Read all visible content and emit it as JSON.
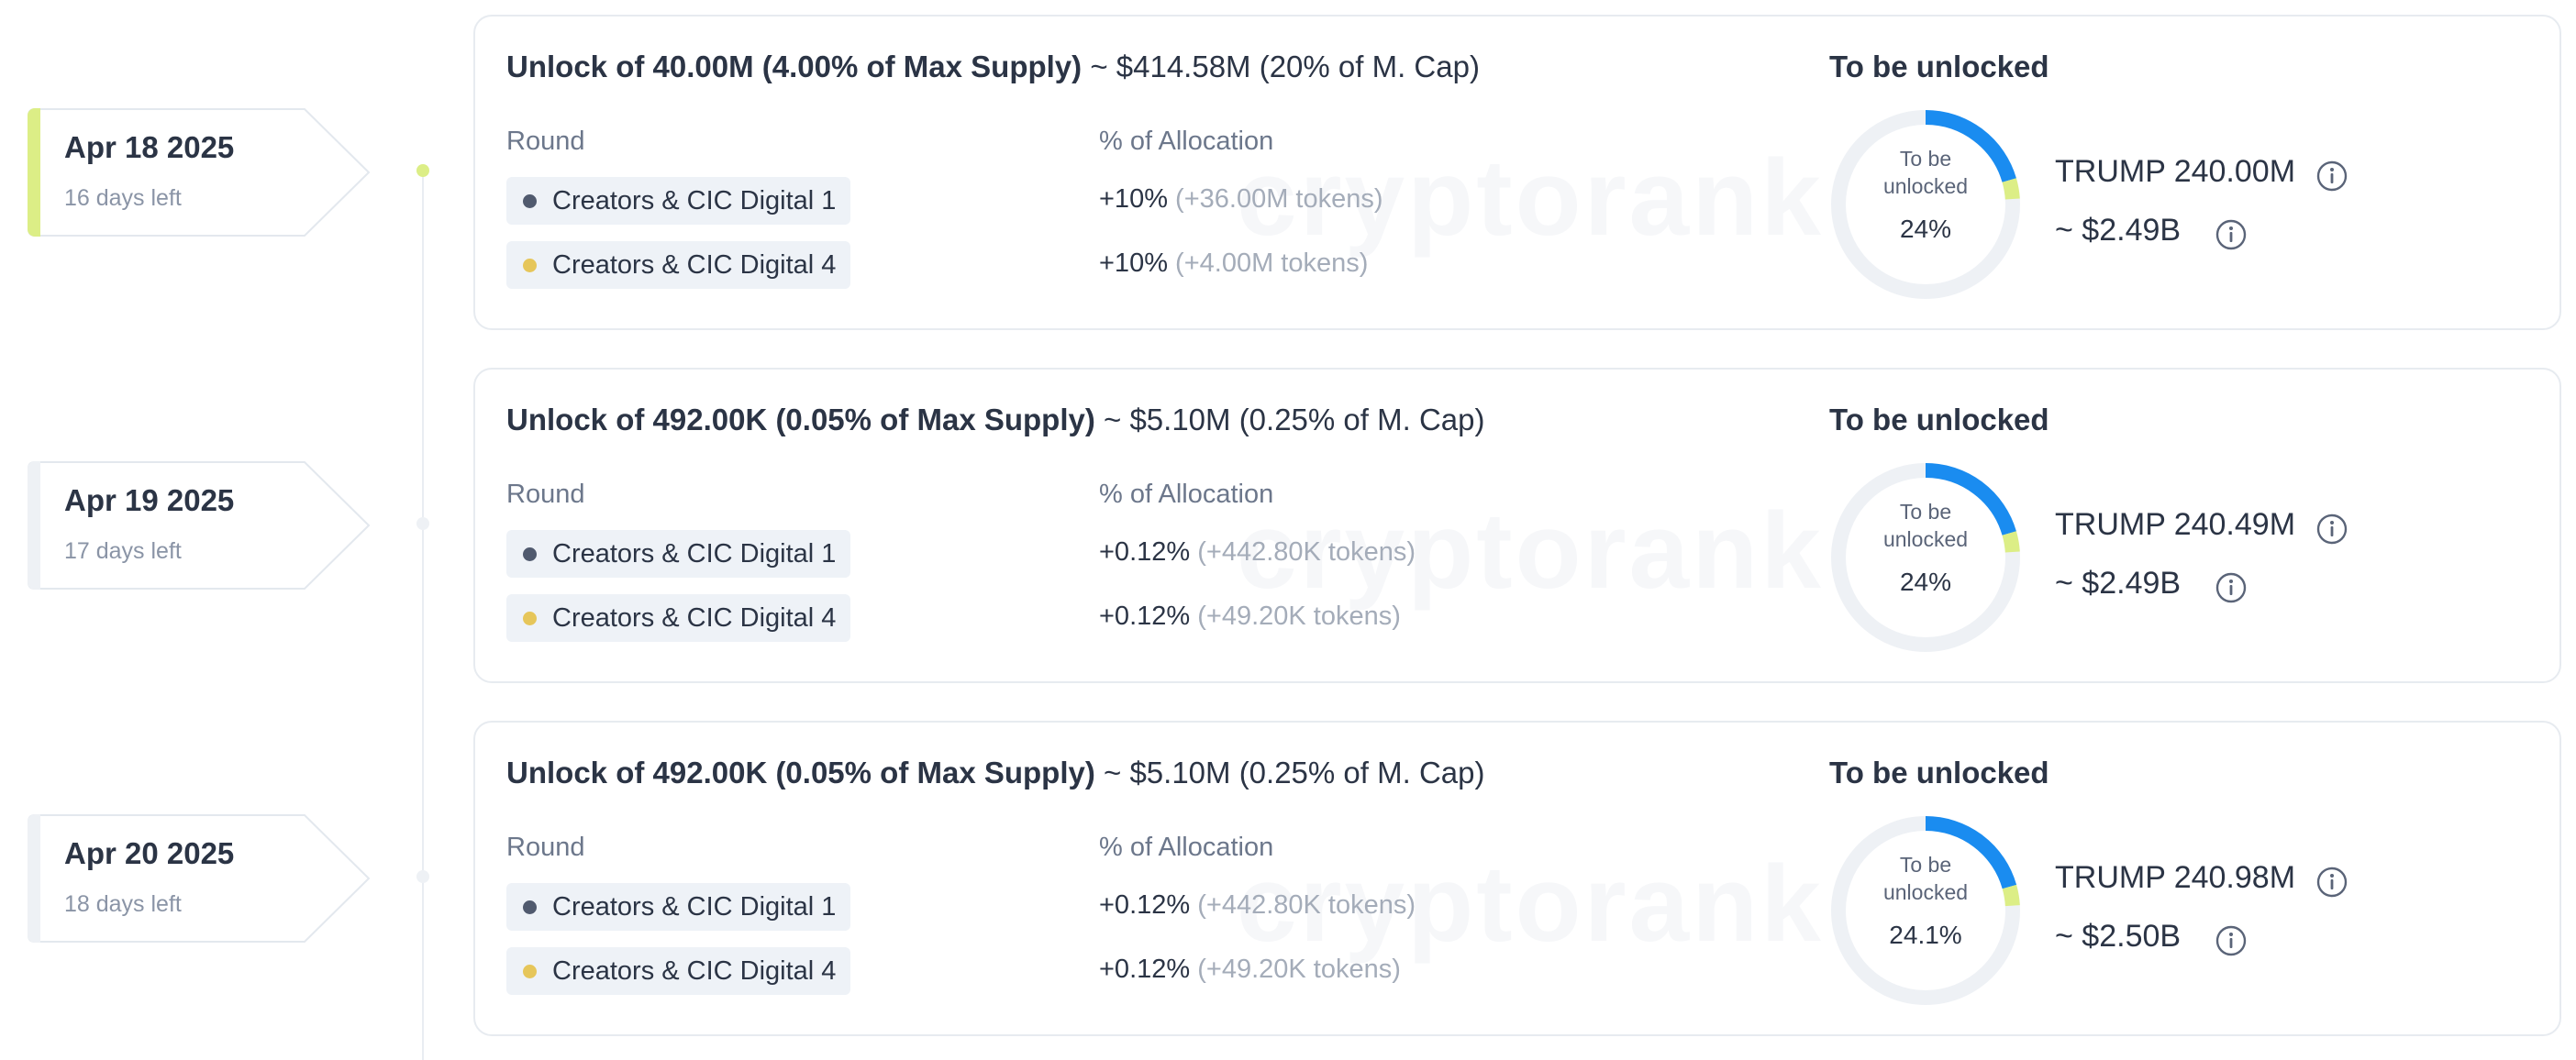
{
  "colors": {
    "accent_active": "#dcee86",
    "donut_blue": "#1a8cf0",
    "donut_green": "#dcee86",
    "donut_track": "#eef1f5",
    "dot_creators_1": "#505a6e",
    "dot_creators_4": "#e6c65a"
  },
  "watermark": "cryptorank",
  "labels": {
    "round": "Round",
    "allocation": "% of Allocation",
    "to_be_unlocked": "To be unlocked",
    "donut_caption": "To be unlocked"
  },
  "events": [
    {
      "date": "Apr 18 2025",
      "days_left": "16 days left",
      "active": true,
      "title_strong": "Unlock of 40.00M (4.00% of Max Supply)",
      "title_soft": "~ $414.58M (20% of M. Cap)",
      "rounds": [
        {
          "name": "Creators & CIC Digital 1",
          "dot": "dot_creators_1",
          "alloc": "+10%",
          "tokens": "(+36.00M tokens)"
        },
        {
          "name": "Creators & CIC Digital 4",
          "dot": "dot_creators_4",
          "alloc": "+10%",
          "tokens": "(+4.00M tokens)"
        }
      ],
      "to_be_unlocked_pct": "24%",
      "to_be_unlocked_fraction": 0.24,
      "amount": "TRUMP 240.00M",
      "usd": "~ $2.49B"
    },
    {
      "date": "Apr 19 2025",
      "days_left": "17 days left",
      "active": false,
      "title_strong": "Unlock of 492.00K (0.05% of Max Supply)",
      "title_soft": "~ $5.10M (0.25% of M. Cap)",
      "rounds": [
        {
          "name": "Creators & CIC Digital 1",
          "dot": "dot_creators_1",
          "alloc": "+0.12%",
          "tokens": "(+442.80K tokens)"
        },
        {
          "name": "Creators & CIC Digital 4",
          "dot": "dot_creators_4",
          "alloc": "+0.12%",
          "tokens": "(+49.20K tokens)"
        }
      ],
      "to_be_unlocked_pct": "24%",
      "to_be_unlocked_fraction": 0.24,
      "amount": "TRUMP 240.49M",
      "usd": "~ $2.49B"
    },
    {
      "date": "Apr 20 2025",
      "days_left": "18 days left",
      "active": false,
      "title_strong": "Unlock of 492.00K (0.05% of Max Supply)",
      "title_soft": "~ $5.10M (0.25% of M. Cap)",
      "rounds": [
        {
          "name": "Creators & CIC Digital 1",
          "dot": "dot_creators_1",
          "alloc": "+0.12%",
          "tokens": "(+442.80K tokens)"
        },
        {
          "name": "Creators & CIC Digital 4",
          "dot": "dot_creators_4",
          "alloc": "+0.12%",
          "tokens": "(+49.20K tokens)"
        }
      ],
      "to_be_unlocked_pct": "24.1%",
      "to_be_unlocked_fraction": 0.241,
      "amount": "TRUMP 240.98M",
      "usd": "~ $2.50B"
    }
  ]
}
